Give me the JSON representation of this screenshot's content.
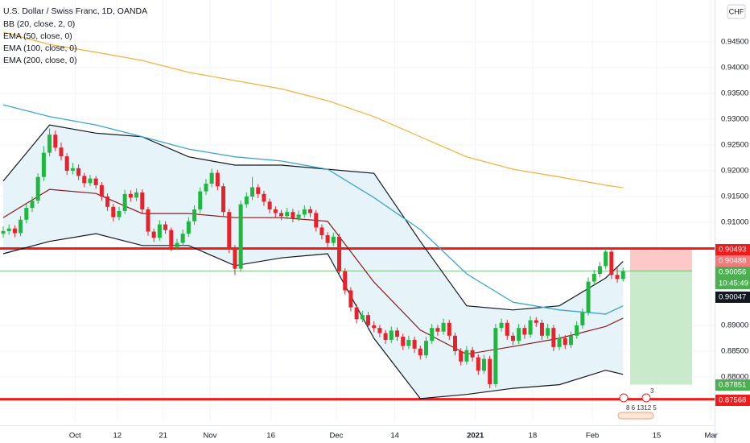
{
  "chart_data": {
    "type": "candlestick",
    "title": "U.S. Dollar / Swiss Franc, 1D, OANDA",
    "currency": "CHF",
    "xlim": [
      -0.556,
      122.8
    ],
    "ylim": [
      0.87156,
      0.95313
    ],
    "grid": true,
    "xticks": [
      {
        "value": 12.4,
        "label": "Oct"
      },
      {
        "value": 19.7,
        "label": "12"
      },
      {
        "value": 27.6,
        "label": "21"
      },
      {
        "value": 35.7,
        "label": "Nov"
      },
      {
        "value": 46.2,
        "label": "16"
      },
      {
        "value": 57.5,
        "label": "Dec"
      },
      {
        "value": 67.6,
        "label": "14"
      },
      {
        "value": 81.5,
        "label": "2021"
      },
      {
        "value": 91.4,
        "label": "18"
      },
      {
        "value": 101.7,
        "label": "Feb"
      },
      {
        "value": 112.8,
        "label": "15"
      },
      {
        "value": 122.2,
        "label": "Mar"
      }
    ],
    "yticks": [
      {
        "value": 0.88,
        "label": "0.88000"
      },
      {
        "value": 0.885,
        "label": "0.88500"
      },
      {
        "value": 0.89,
        "label": "0.89000"
      },
      {
        "value": 0.91,
        "label": "0.91000"
      },
      {
        "value": 0.915,
        "label": "0.91500"
      },
      {
        "value": 0.92,
        "label": "0.92000"
      },
      {
        "value": 0.925,
        "label": "0.92500"
      },
      {
        "value": 0.93,
        "label": "0.93000"
      },
      {
        "value": 0.935,
        "label": "0.93500"
      },
      {
        "value": 0.94,
        "label": "0.94000"
      },
      {
        "value": 0.945,
        "label": "0.94500"
      }
    ],
    "up_color": "#1fb83f",
    "down_color": "#e8222a",
    "ohlc": [
      [
        0.9078,
        0.9092,
        0.907,
        0.9083
      ],
      [
        0.9083,
        0.9096,
        0.9076,
        0.9088
      ],
      [
        0.9088,
        0.9094,
        0.9071,
        0.9079
      ],
      [
        0.9079,
        0.9112,
        0.9073,
        0.9105
      ],
      [
        0.9105,
        0.9135,
        0.9098,
        0.9128
      ],
      [
        0.9128,
        0.915,
        0.912,
        0.9142
      ],
      [
        0.9142,
        0.9195,
        0.9136,
        0.9188
      ],
      [
        0.9188,
        0.9248,
        0.918,
        0.9235
      ],
      [
        0.9235,
        0.9282,
        0.9228,
        0.927
      ],
      [
        0.927,
        0.9278,
        0.9238,
        0.9245
      ],
      [
        0.9245,
        0.9255,
        0.922,
        0.9228
      ],
      [
        0.9228,
        0.9234,
        0.9192,
        0.92
      ],
      [
        0.92,
        0.9215,
        0.9193,
        0.9205
      ],
      [
        0.9205,
        0.9212,
        0.9182,
        0.919
      ],
      [
        0.919,
        0.9196,
        0.9168,
        0.9176
      ],
      [
        0.9176,
        0.9192,
        0.917,
        0.9185
      ],
      [
        0.9185,
        0.919,
        0.9165,
        0.9172
      ],
      [
        0.9172,
        0.9178,
        0.9142,
        0.915
      ],
      [
        0.915,
        0.9156,
        0.9122,
        0.913
      ],
      [
        0.913,
        0.9136,
        0.9102,
        0.911
      ],
      [
        0.911,
        0.913,
        0.9104,
        0.9122
      ],
      [
        0.9122,
        0.9163,
        0.9116,
        0.9155
      ],
      [
        0.9155,
        0.9162,
        0.914,
        0.9148
      ],
      [
        0.9148,
        0.9166,
        0.9141,
        0.9158
      ],
      [
        0.9158,
        0.9164,
        0.9117,
        0.9125
      ],
      [
        0.9125,
        0.913,
        0.9074,
        0.9082
      ],
      [
        0.9082,
        0.9088,
        0.9062,
        0.907
      ],
      [
        0.907,
        0.9104,
        0.9064,
        0.9096
      ],
      [
        0.9096,
        0.9102,
        0.9078,
        0.9085
      ],
      [
        0.9085,
        0.909,
        0.9044,
        0.9052
      ],
      [
        0.9052,
        0.9068,
        0.9046,
        0.906
      ],
      [
        0.906,
        0.9086,
        0.9054,
        0.9078
      ],
      [
        0.9078,
        0.911,
        0.9072,
        0.9102
      ],
      [
        0.9102,
        0.9133,
        0.9095,
        0.9125
      ],
      [
        0.9125,
        0.9168,
        0.9118,
        0.916
      ],
      [
        0.916,
        0.9184,
        0.9153,
        0.9175
      ],
      [
        0.9175,
        0.9204,
        0.9168,
        0.9196
      ],
      [
        0.9196,
        0.9202,
        0.9162,
        0.917
      ],
      [
        0.917,
        0.9176,
        0.9112,
        0.912
      ],
      [
        0.912,
        0.9126,
        0.904,
        0.905
      ],
      [
        0.905,
        0.9056,
        0.8998,
        0.901
      ],
      [
        0.901,
        0.9142,
        0.9004,
        0.9135
      ],
      [
        0.9135,
        0.9158,
        0.9128,
        0.915
      ],
      [
        0.915,
        0.9188,
        0.9143,
        0.9168
      ],
      [
        0.9168,
        0.9174,
        0.9147,
        0.9155
      ],
      [
        0.9155,
        0.9161,
        0.9132,
        0.914
      ],
      [
        0.914,
        0.9146,
        0.9117,
        0.9125
      ],
      [
        0.9125,
        0.9131,
        0.911,
        0.9118
      ],
      [
        0.9118,
        0.9124,
        0.9104,
        0.9112
      ],
      [
        0.9112,
        0.9128,
        0.9106,
        0.912
      ],
      [
        0.912,
        0.9126,
        0.91,
        0.9108
      ],
      [
        0.9108,
        0.9123,
        0.9102,
        0.9115
      ],
      [
        0.9115,
        0.9133,
        0.9109,
        0.9125
      ],
      [
        0.9125,
        0.9131,
        0.911,
        0.9118
      ],
      [
        0.9118,
        0.9124,
        0.9082,
        0.909
      ],
      [
        0.909,
        0.9096,
        0.9067,
        0.9075
      ],
      [
        0.9075,
        0.9081,
        0.9052,
        0.906
      ],
      [
        0.906,
        0.908,
        0.9054,
        0.9072
      ],
      [
        0.9072,
        0.9078,
        0.8995,
        0.9005
      ],
      [
        0.9005,
        0.9011,
        0.896,
        0.8968
      ],
      [
        0.8968,
        0.8974,
        0.8927,
        0.8935
      ],
      [
        0.8935,
        0.8941,
        0.8904,
        0.8912
      ],
      [
        0.8912,
        0.8928,
        0.8906,
        0.892
      ],
      [
        0.892,
        0.8926,
        0.8892,
        0.89
      ],
      [
        0.89,
        0.8908,
        0.8887,
        0.8895
      ],
      [
        0.8895,
        0.8901,
        0.8877,
        0.8885
      ],
      [
        0.8885,
        0.8891,
        0.8864,
        0.8872
      ],
      [
        0.8872,
        0.8898,
        0.8866,
        0.889
      ],
      [
        0.889,
        0.8896,
        0.887,
        0.8878
      ],
      [
        0.8878,
        0.8884,
        0.8852,
        0.886
      ],
      [
        0.886,
        0.888,
        0.8854,
        0.8872
      ],
      [
        0.8872,
        0.8878,
        0.8847,
        0.8855
      ],
      [
        0.8855,
        0.8861,
        0.8834,
        0.8842
      ],
      [
        0.8842,
        0.8878,
        0.8836,
        0.887
      ],
      [
        0.887,
        0.8903,
        0.8864,
        0.8895
      ],
      [
        0.8895,
        0.8901,
        0.888,
        0.8888
      ],
      [
        0.8888,
        0.8913,
        0.8882,
        0.8905
      ],
      [
        0.8905,
        0.8911,
        0.8872,
        0.888
      ],
      [
        0.888,
        0.8886,
        0.8842,
        0.885
      ],
      [
        0.885,
        0.8856,
        0.8822,
        0.883
      ],
      [
        0.883,
        0.886,
        0.8824,
        0.8852
      ],
      [
        0.8852,
        0.8858,
        0.883,
        0.8838
      ],
      [
        0.8838,
        0.8844,
        0.8804,
        0.8812
      ],
      [
        0.8812,
        0.8843,
        0.8806,
        0.8835
      ],
      [
        0.8835,
        0.8841,
        0.8778,
        0.8786
      ],
      [
        0.8786,
        0.8903,
        0.878,
        0.8895
      ],
      [
        0.8895,
        0.8913,
        0.8888,
        0.8905
      ],
      [
        0.8905,
        0.8911,
        0.8872,
        0.888
      ],
      [
        0.888,
        0.8886,
        0.8862,
        0.887
      ],
      [
        0.887,
        0.8903,
        0.8864,
        0.8895
      ],
      [
        0.8895,
        0.8901,
        0.8874,
        0.8882
      ],
      [
        0.8882,
        0.8918,
        0.8876,
        0.891
      ],
      [
        0.891,
        0.8916,
        0.8897,
        0.8905
      ],
      [
        0.8905,
        0.8911,
        0.8872,
        0.888
      ],
      [
        0.888,
        0.8903,
        0.8874,
        0.8895
      ],
      [
        0.8895,
        0.8901,
        0.885,
        0.8858
      ],
      [
        0.8858,
        0.8883,
        0.8852,
        0.8875
      ],
      [
        0.8875,
        0.8881,
        0.8854,
        0.8862
      ],
      [
        0.8862,
        0.8888,
        0.8856,
        0.888
      ],
      [
        0.888,
        0.8908,
        0.8874,
        0.89
      ],
      [
        0.89,
        0.8933,
        0.8894,
        0.8925
      ],
      [
        0.8925,
        0.8993,
        0.8919,
        0.8985
      ],
      [
        0.8985,
        0.9008,
        0.8978,
        0.9
      ],
      [
        0.9,
        0.9023,
        0.8993,
        0.9015
      ],
      [
        0.9015,
        0.9049,
        0.9009,
        0.9043
      ],
      [
        0.9043,
        0.9049,
        0.899,
        0.8998
      ],
      [
        0.8998,
        0.9012,
        0.8983,
        0.899
      ],
      [
        0.899,
        0.9012,
        0.8985,
        0.9005
      ]
    ],
    "overlay_x": [
      0,
      8,
      16,
      24,
      32,
      40,
      48,
      56,
      64,
      72,
      80,
      88,
      96,
      104,
      107
    ],
    "overlays": [
      {
        "name": "BB (20, close, 2, 0)",
        "color": "#131722",
        "basis_color": "#8b1a1a",
        "fill": "#e6f3f8",
        "upper": [
          0.918,
          0.9289,
          0.9273,
          0.9266,
          0.9227,
          0.9211,
          0.9211,
          0.9203,
          0.9195,
          0.9063,
          0.8938,
          0.893,
          0.8938,
          0.8992,
          0.9024
        ],
        "basis": [
          0.9109,
          0.9164,
          0.9156,
          0.9117,
          0.9117,
          0.9109,
          0.9109,
          0.9102,
          0.8984,
          0.8891,
          0.8844,
          0.8859,
          0.8875,
          0.8898,
          0.8914
        ],
        "lower": [
          0.9039,
          0.9063,
          0.9078,
          0.9055,
          0.9055,
          0.9016,
          0.9031,
          0.9039,
          0.8875,
          0.8758,
          0.8766,
          0.8778,
          0.8785,
          0.8813,
          0.8805
        ]
      },
      {
        "name": "EMA (50, close, 0)"
      },
      {
        "name": "EMA (100, close, 0)",
        "color": "#3aa6d0",
        "values": [
          0.9328,
          0.9305,
          0.9289,
          0.9266,
          0.9242,
          0.9227,
          0.9219,
          0.9203,
          0.9148,
          0.9086,
          0.9,
          0.8945,
          0.893,
          0.8922,
          0.8938
        ]
      },
      {
        "name": "EMA (200, close, 0)",
        "color": "#f2b544",
        "values": [
          0.9469,
          0.9445,
          0.943,
          0.9414,
          0.9391,
          0.9375,
          0.9359,
          0.9336,
          0.9305,
          0.9266,
          0.9227,
          0.9203,
          0.9188,
          0.9172,
          0.9167
        ]
      }
    ],
    "levels": [
      0.90493,
      0.87568
    ],
    "level_color": "#f21b1b",
    "position": {
      "stop": 0.90493,
      "entry": 0.90056,
      "target": 0.87851,
      "stop_color": "#fdc8c8",
      "target_color": "#c9ebcc",
      "entry_color": "#4caf50"
    },
    "price_labels": [
      {
        "value": 0.90493,
        "color": "#f21b1b"
      },
      {
        "value": 0.90488,
        "color": "#f27a7a"
      },
      {
        "value": 0.90056,
        "color": "#4caf50"
      },
      {
        "label": "10:45:49",
        "color": "#4caf50"
      },
      {
        "value": 0.90047,
        "color": "#131722"
      },
      {
        "value": 0.87851,
        "color": "#4caf50"
      },
      {
        "value": 0.87568,
        "color": "#f21b1b"
      }
    ],
    "events": [
      "3",
      "8  6 1312 5"
    ]
  }
}
